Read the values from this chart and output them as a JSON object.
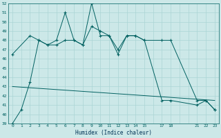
{
  "xlabel": "Humidex (Indice chaleur)",
  "ylabel": "",
  "bg_color": "#cce8e8",
  "grid_color": "#aad4d4",
  "line_color": "#006060",
  "ylim": [
    39,
    52
  ],
  "yticks": [
    39,
    40,
    41,
    42,
    43,
    44,
    45,
    46,
    47,
    48,
    49,
    50,
    51,
    52
  ],
  "xtick_labels": [
    "0",
    "1",
    "2",
    "3",
    "4",
    "5",
    "6",
    "7",
    "8",
    "9",
    "10",
    "11",
    "12",
    "13",
    "14",
    "15",
    "",
    "17",
    "18",
    "",
    "",
    "21",
    "22",
    "23"
  ],
  "xtick_positions": [
    0,
    1,
    2,
    3,
    4,
    5,
    6,
    7,
    8,
    9,
    10,
    11,
    12,
    13,
    14,
    15,
    16,
    17,
    18,
    19,
    20,
    21,
    22,
    23
  ],
  "line1_x": [
    0,
    1,
    2,
    3,
    4,
    5,
    6,
    7,
    8,
    9,
    10,
    11,
    12,
    13,
    14,
    15,
    17,
    18,
    21,
    22,
    23
  ],
  "line1_y": [
    39,
    40.5,
    43.5,
    48,
    47.5,
    48,
    51,
    48,
    47.5,
    49.5,
    49,
    48.5,
    47,
    48.5,
    48.5,
    48,
    48,
    48,
    41.5,
    41.5,
    40.5
  ],
  "line2_x": [
    0,
    2,
    3,
    4,
    5,
    6,
    7,
    8,
    9,
    10,
    11,
    12,
    13,
    14,
    15,
    17,
    18,
    21,
    22,
    23
  ],
  "line2_y": [
    46.5,
    48.5,
    48,
    47.5,
    47.5,
    48,
    48,
    47.5,
    52,
    48.5,
    48.5,
    46.5,
    48.5,
    48.5,
    48,
    41.5,
    41.5,
    41,
    41.5,
    40.5
  ],
  "trend_x": [
    0,
    23
  ],
  "trend_y": [
    43.0,
    41.5
  ]
}
